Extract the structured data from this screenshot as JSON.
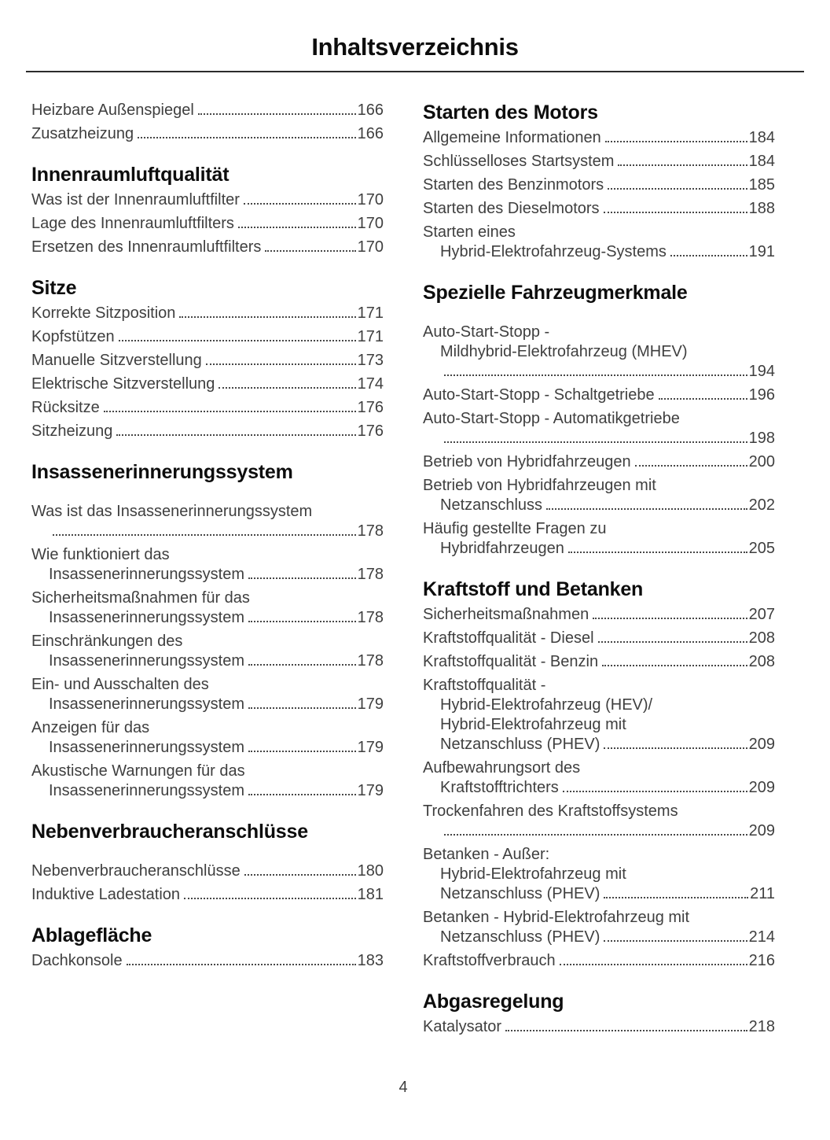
{
  "header": {
    "title": "Inhaltsverzeichnis"
  },
  "footer": {
    "page_number": "4"
  },
  "colors": {
    "background": "#ffffff",
    "heading_text": "#0d0d0d",
    "body_text": "#3f3f3f",
    "leader_dots": "#474747",
    "divider": "#2b2b2b"
  },
  "toc": {
    "columns": [
      {
        "name": "left",
        "sections": [
          {
            "title": "",
            "gap_after_title": false,
            "entries": [
              {
                "text": "Heizbare Außenspiegel",
                "page": "166"
              },
              {
                "text": "Zusatzheizung",
                "page": "166"
              }
            ]
          },
          {
            "title": "Innenraumluftqualität",
            "gap_after_title": false,
            "entries": [
              {
                "text": "Was ist der Innenraumluftfilter",
                "page": "170"
              },
              {
                "text": "Lage des Innenraumluftfilters",
                "page": "170"
              },
              {
                "text": "Ersetzen des Innenraumluftfilters",
                "page": "170"
              }
            ]
          },
          {
            "title": "Sitze",
            "gap_after_title": false,
            "entries": [
              {
                "text": "Korrekte Sitzposition",
                "page": "171"
              },
              {
                "text": "Kopfstützen",
                "page": "171"
              },
              {
                "text": "Manuelle Sitzverstellung",
                "page": "173"
              },
              {
                "text": "Elektrische Sitzverstellung",
                "page": "174"
              },
              {
                "text": "Rücksitze",
                "page": "176"
              },
              {
                "text": "Sitzheizung",
                "page": "176"
              }
            ]
          },
          {
            "title": "Insassenerinnerungssystem",
            "gap_after_title": true,
            "entries": [
              {
                "pre": [
                  "Was ist das Insassenerinnerungssystem"
                ],
                "text": "",
                "page": "178"
              },
              {
                "pre": [
                  "Wie funktioniert das"
                ],
                "text": "Insassenerinnerungssystem",
                "page": "178"
              },
              {
                "pre": [
                  "Sicherheitsmaßnahmen für das"
                ],
                "text": "Insassenerinnerungssystem",
                "page": "178"
              },
              {
                "pre": [
                  "Einschränkungen des"
                ],
                "text": "Insassenerinnerungssystem",
                "page": "178"
              },
              {
                "pre": [
                  "Ein- und Ausschalten des"
                ],
                "text": "Insassenerinnerungssystem",
                "page": "179"
              },
              {
                "pre": [
                  "Anzeigen für das"
                ],
                "text": "Insassenerinnerungssystem",
                "page": "179"
              },
              {
                "pre": [
                  "Akustische Warnungen für das"
                ],
                "text": "Insassenerinnerungssystem",
                "page": "179"
              }
            ]
          },
          {
            "title": "Nebenverbraucheranschlüsse",
            "gap_after_title": true,
            "entries": [
              {
                "text": "Nebenverbraucheranschlüsse",
                "page": "180"
              },
              {
                "text": "Induktive Ladestation",
                "page": "181"
              }
            ]
          },
          {
            "title": "Ablagefläche",
            "gap_after_title": false,
            "entries": [
              {
                "text": "Dachkonsole",
                "page": "183"
              }
            ]
          }
        ]
      },
      {
        "name": "right",
        "sections": [
          {
            "title": "Starten des Motors",
            "gap_after_title": false,
            "entries": [
              {
                "text": "Allgemeine Informationen",
                "page": "184"
              },
              {
                "text": "Schlüsselloses Startsystem",
                "page": "184"
              },
              {
                "text": "Starten des Benzinmotors",
                "page": "185"
              },
              {
                "text": "Starten des Dieselmotors",
                "page": "188"
              },
              {
                "pre": [
                  "Starten eines"
                ],
                "text": "Hybrid-Elektrofahrzeug-Systems",
                "page": "191"
              }
            ]
          },
          {
            "title": "Spezielle Fahrzeugmerkmale",
            "gap_after_title": true,
            "entries": [
              {
                "pre": [
                  "Auto-Start-Stopp -",
                  "Mildhybrid-Elektrofahrzeug (MHEV)"
                ],
                "text": "",
                "page": "194"
              },
              {
                "text": "Auto-Start-Stopp - Schaltgetriebe",
                "page": "196"
              },
              {
                "pre": [
                  "Auto-Start-Stopp - Automatikgetriebe"
                ],
                "text": "",
                "page": "198"
              },
              {
                "text": "Betrieb von Hybridfahrzeugen",
                "page": "200"
              },
              {
                "pre": [
                  "Betrieb von Hybridfahrzeugen mit"
                ],
                "text": "Netzanschluss",
                "page": "202"
              },
              {
                "pre": [
                  "Häufig gestellte Fragen zu"
                ],
                "text": "Hybridfahrzeugen",
                "page": "205"
              }
            ]
          },
          {
            "title": "Kraftstoff und Betanken",
            "gap_after_title": false,
            "entries": [
              {
                "text": "Sicherheitsmaßnahmen",
                "page": "207"
              },
              {
                "text": "Kraftstoffqualität - Diesel",
                "page": "208"
              },
              {
                "text": "Kraftstoffqualität - Benzin",
                "page": "208"
              },
              {
                "pre": [
                  "Kraftstoffqualität -",
                  "Hybrid-Elektrofahrzeug (HEV)/",
                  "Hybrid-Elektrofahrzeug mit"
                ],
                "text": "Netzanschluss (PHEV)",
                "page": "209"
              },
              {
                "pre": [
                  "Aufbewahrungsort des"
                ],
                "text": "Kraftstofftrichters",
                "page": "209"
              },
              {
                "pre": [
                  "Trockenfahren des Kraftstoffsystems"
                ],
                "text": "",
                "page": "209"
              },
              {
                "pre": [
                  "Betanken - Außer:",
                  "Hybrid-Elektrofahrzeug mit"
                ],
                "text": "Netzanschluss (PHEV)",
                "page": "211"
              },
              {
                "pre": [
                  "Betanken - Hybrid-Elektrofahrzeug mit"
                ],
                "text": "Netzanschluss (PHEV)",
                "page": "214"
              },
              {
                "text": "Kraftstoffverbrauch",
                "page": "216"
              }
            ]
          },
          {
            "title": "Abgasregelung",
            "gap_after_title": false,
            "entries": [
              {
                "text": "Katalysator",
                "page": "218"
              }
            ]
          }
        ]
      }
    ]
  }
}
